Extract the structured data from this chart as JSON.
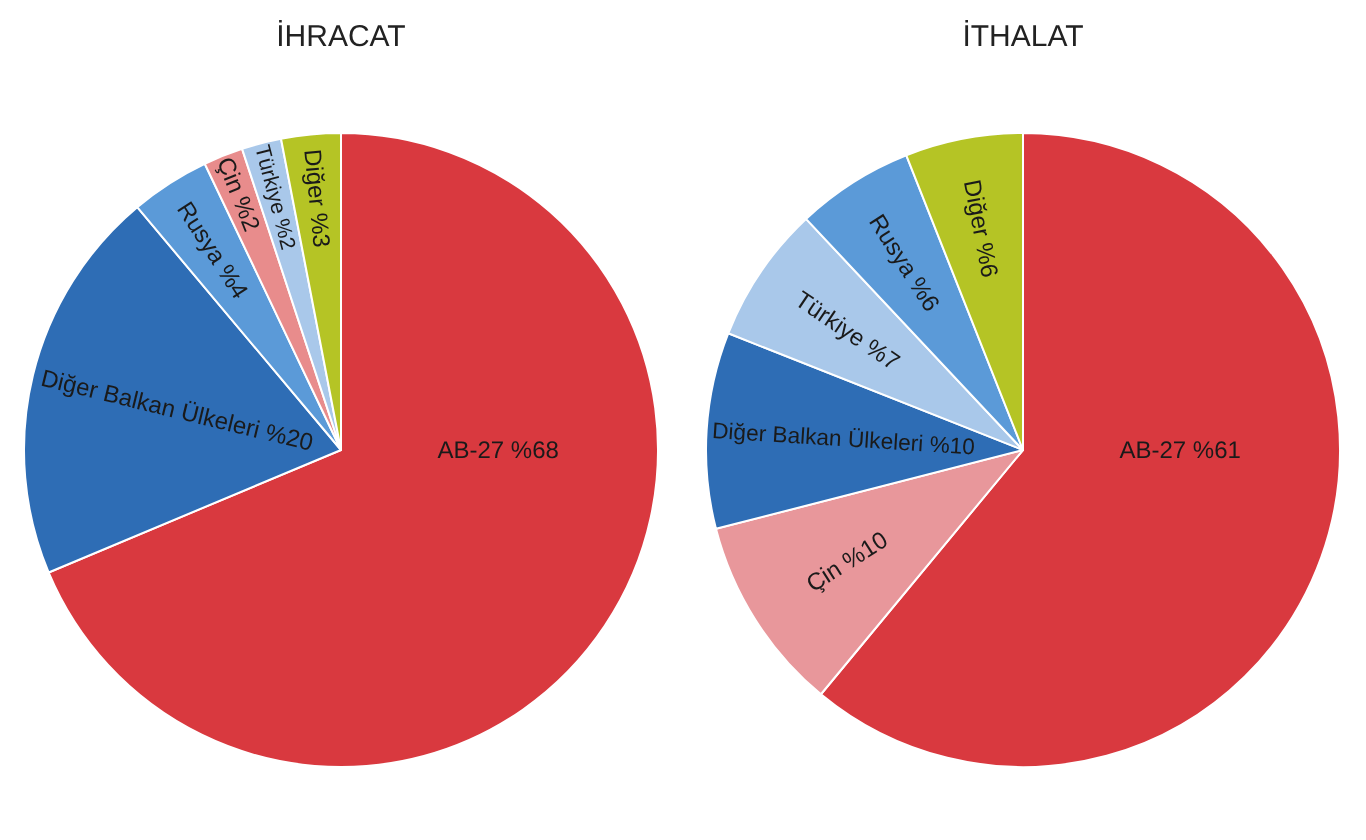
{
  "chart_data": [
    {
      "type": "pie",
      "title": "İHRACAT",
      "categories": [
        "AB-27",
        "Diğer Balkan Ülkeleri",
        "Rusya",
        "Çin",
        "Türkiye",
        "Diğer"
      ],
      "values": [
        68,
        20,
        4,
        2,
        2,
        3
      ],
      "value_labels": [
        "%68",
        "%20",
        "%4",
        "%2",
        "%2",
        "%3"
      ],
      "colors": [
        "#d9393f",
        "#2e6db5",
        "#5b9ad8",
        "#e88c8c",
        "#a9c8ea",
        "#b5c425"
      ]
    },
    {
      "type": "pie",
      "title": "İTHALAT",
      "categories": [
        "AB-27",
        "Çin",
        "Diğer Balkan Ülkeleri",
        "Türkiye",
        "Rusya",
        "Diğer"
      ],
      "values": [
        61,
        10,
        10,
        7,
        6,
        6
      ],
      "value_labels": [
        "%61",
        "%10",
        "%10",
        "%7",
        "%6",
        "%6"
      ],
      "colors": [
        "#d9393f",
        "#e8979b",
        "#2e6db5",
        "#a9c8ea",
        "#5b9ad8",
        "#b5c425"
      ]
    }
  ]
}
